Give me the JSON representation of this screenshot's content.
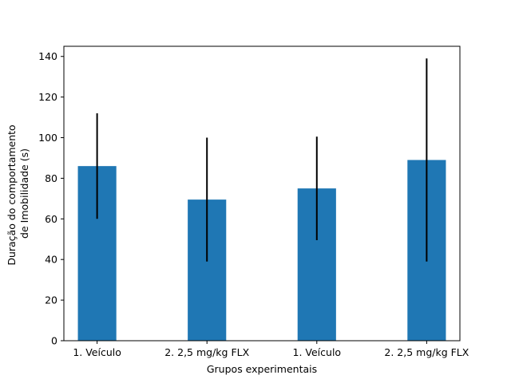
{
  "chart_data": {
    "type": "bar",
    "title": "",
    "xlabel": "Grupos experimentais",
    "ylabel_lines": [
      "Duração do comportamento",
      "de Imobilidade (s)"
    ],
    "categories": [
      "1. Veículo",
      "2. 2,5 mg/kg FLX",
      "1. Veículo",
      "2. 2,5 mg/kg FLX"
    ],
    "values": [
      86,
      69.5,
      75,
      89
    ],
    "errors": [
      26,
      30.5,
      25.5,
      50
    ],
    "ylim": [
      0,
      145
    ],
    "yticks": [
      0,
      20,
      40,
      60,
      80,
      100,
      120,
      140
    ],
    "grid": false,
    "legend": "none",
    "bar_color": "#1f77b4",
    "error_color": "#000000"
  }
}
